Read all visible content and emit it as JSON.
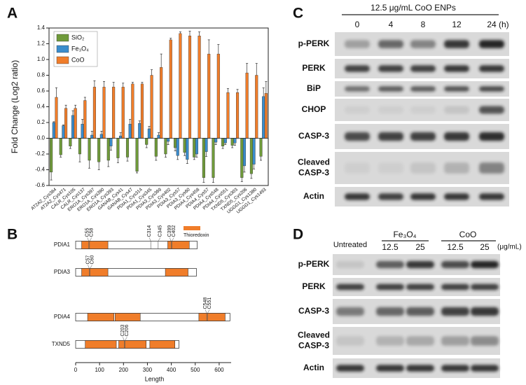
{
  "letters": [
    "A",
    "B",
    "C",
    "D"
  ],
  "chart_data": [
    {
      "type": "bar",
      "ylabel": "Fold Change (Log2 ratio)",
      "categories": [
        "AT2A2_Cys364",
        "AT2A2_Cys471",
        "CALR_Cys105",
        "CALR_Cys137",
        "ERO1A_Cys397",
        "ERO1A_Cys390",
        "ERO1A_Cys393",
        "GANAB_Cys41",
        "GANAB_Cys47",
        "PDIA1_Cys314",
        "PDIA1_Cys345",
        "PDIA3_Cys369",
        "PDIA3_Cys402",
        "PDIA3_Cys57",
        "PDIA3_Cys60",
        "PDIA4_Cys458",
        "PDIA4_Cys57",
        "PDIA4_Cys548",
        "PDIA4_Cys551",
        "TXND5_Cys303",
        "TXND5_Cys206",
        "UGGG1_Cys1380",
        "UGGG1_Cys1493"
      ],
      "series": [
        {
          "name": "SiO₂",
          "color": "#6f9a3a",
          "values": [
            -0.43,
            -0.21,
            -0.1,
            -0.2,
            -0.28,
            -0.3,
            -0.28,
            -0.25,
            -0.24,
            -0.42,
            -0.08,
            -0.23,
            -0.2,
            -0.12,
            -0.18,
            -0.24,
            -0.5,
            -0.5,
            -0.1,
            -0.09,
            -0.5,
            -0.45,
            -0.23
          ],
          "errors": [
            0.1,
            0.03,
            0.03,
            0.1,
            0.1,
            0.1,
            0.08,
            0.06,
            0.05,
            0.02,
            0.04,
            0.05,
            0.04,
            0.04,
            0.04,
            0.03,
            0.06,
            0.06,
            0.03,
            0.03,
            0.05,
            0.06,
            0.05
          ]
        },
        {
          "name": "Fe₃O₄",
          "color": "#3a8ccc",
          "values": [
            0.2,
            0.16,
            0.29,
            0.18,
            0.04,
            0.05,
            -0.1,
            0.03,
            0.18,
            0.19,
            0.12,
            0.04,
            -0.04,
            -0.22,
            -0.27,
            -0.2,
            -0.17,
            -0.05,
            -0.06,
            -0.06,
            -0.35,
            -0.33,
            0.53
          ],
          "errors": [
            0.01,
            0.01,
            0.06,
            0.06,
            0.05,
            0.04,
            0.05,
            0.04,
            0.06,
            0.03,
            0.03,
            0.03,
            0.04,
            0.05,
            0.05,
            0.04,
            0.06,
            0.03,
            0.02,
            0.03,
            0.08,
            0.06,
            0.11
          ]
        },
        {
          "name": "CoO",
          "color": "#f07d2a",
          "values": [
            0.52,
            0.38,
            0.38,
            0.48,
            0.65,
            0.65,
            0.65,
            0.65,
            0.69,
            0.69,
            0.8,
            0.9,
            1.25,
            1.33,
            1.3,
            1.3,
            1.07,
            1.07,
            0.58,
            0.58,
            0.83,
            0.8,
            0.57
          ],
          "errors": [
            0.12,
            0.04,
            0.04,
            0.04,
            0.08,
            0.07,
            0.06,
            0.05,
            0.02,
            0.02,
            0.07,
            0.17,
            0.02,
            0.02,
            0.06,
            0.05,
            0.18,
            0.12,
            0.05,
            0.04,
            0.12,
            0.15,
            0.15
          ]
        }
      ],
      "ylim": [
        -0.6,
        1.4
      ],
      "yticks": [
        -0.6,
        -0.4,
        -0.2,
        {
          "value": 0,
          "label": "0.0"
        },
        0.2,
        0.4,
        0.6,
        0.8,
        {
          "value": 1,
          "label": "1.0"
        },
        1.2,
        1.4
      ],
      "legend": "upper left"
    },
    {
      "type": "domain",
      "xlabel": "Length",
      "legend_label": "Thioredoxin",
      "color": "#f07d2a",
      "xlim": [
        0,
        650
      ],
      "xticks": [
        0,
        100,
        200,
        300,
        400,
        500,
        600
      ],
      "proteins": [
        {
          "name": "PDIA1",
          "length": 508,
          "domains": [
            [
              25,
              135
            ],
            [
              385,
              475
            ]
          ],
          "sites": [
            {
              "label": "C55",
              "position": 55
            },
            {
              "label": "C58",
              "position": 58
            },
            {
              "label": "C314",
              "position": 314
            },
            {
              "label": "C345",
              "position": 345
            },
            {
              "label": "C399",
              "position": 399
            },
            {
              "label": "C402",
              "position": 402
            }
          ]
        },
        {
          "name": "PDIA3",
          "length": 505,
          "domains": [
            [
              25,
              135
            ],
            [
              375,
              470
            ]
          ],
          "sites": [
            {
              "label": "C57",
              "position": 57
            },
            {
              "label": "C60",
              "position": 60
            }
          ]
        },
        {
          "name": "PDIA4",
          "length": 645,
          "domains": [
            [
              50,
              160
            ],
            [
              165,
              270
            ],
            [
              515,
              625
            ]
          ],
          "sites": [
            {
              "label": "C548",
              "position": 548
            },
            {
              "label": "C551",
              "position": 551
            }
          ]
        },
        {
          "name": "TXND5",
          "length": 432,
          "domains": [
            [
              40,
              170
            ],
            [
              180,
              295
            ],
            [
              310,
              415
            ]
          ],
          "sites": [
            {
              "label": "C203",
              "position": 203
            },
            {
              "label": "C206",
              "position": 206
            }
          ]
        }
      ]
    }
  ],
  "panels": {
    "C": {
      "header": "12.5 μg/mL CoO ENPs",
      "lanes": [
        "0",
        "4",
        "8",
        "12",
        "24"
      ],
      "unit": "(h)",
      "rows": [
        [
          "p-PERK"
        ],
        [
          "PERK"
        ],
        [
          "BiP"
        ],
        [
          "CHOP"
        ],
        [
          "CASP-3"
        ],
        [
          "Cleaved",
          "CASP-3"
        ],
        [
          "Actin"
        ]
      ]
    },
    "D": {
      "untreated": "Untreated",
      "groups": [
        "Fe₃O₄",
        "CoO"
      ],
      "doses": [
        "12.5",
        "25",
        "12.5",
        "25"
      ],
      "unit": "(μg/mL)",
      "rows": [
        [
          "p-PERK"
        ],
        [
          "PERK"
        ],
        [
          "CASP-3"
        ],
        [
          "Cleaved",
          "CASP-3"
        ],
        [
          "Actin"
        ]
      ]
    }
  }
}
